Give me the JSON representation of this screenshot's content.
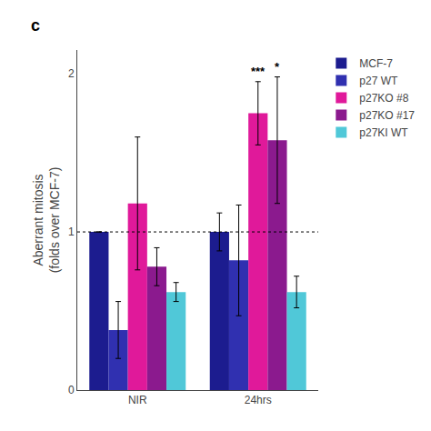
{
  "chart_data": {
    "type": "bar",
    "categories": [
      "NIR",
      "24hrs"
    ],
    "series": [
      {
        "name": "MCF-7",
        "color": "#1c1c8f",
        "values": [
          1.0,
          1.0
        ],
        "errors": [
          0.0,
          0.12
        ]
      },
      {
        "name": "p27 WT",
        "color": "#3030b0",
        "values": [
          0.38,
          0.82
        ],
        "errors": [
          0.18,
          0.35
        ]
      },
      {
        "name": "p27KO #8",
        "color": "#e0199a",
        "values": [
          1.18,
          1.75
        ],
        "errors": [
          0.42,
          0.2
        ]
      },
      {
        "name": "p27KO #17",
        "color": "#8b1a8e",
        "values": [
          0.78,
          1.58
        ],
        "errors": [
          0.12,
          0.4
        ]
      },
      {
        "name": "p27KI WT",
        "color": "#50c8d8",
        "values": [
          0.62,
          0.62
        ],
        "errors": [
          0.06,
          0.1
        ]
      }
    ],
    "ylabel": "Aberrant mitosis\n(folds over MCF-7)",
    "ylim": [
      0,
      2.15
    ],
    "yticks": [
      0,
      1,
      2
    ],
    "hline": 1.0,
    "annotations": [
      {
        "text": "c"
      },
      {
        "text": "***",
        "category": "24hrs",
        "series": "p27KO #8"
      },
      {
        "text": "*",
        "category": "24hrs",
        "series": "p27KO #17"
      }
    ],
    "grid": false,
    "legend": "upper right"
  }
}
